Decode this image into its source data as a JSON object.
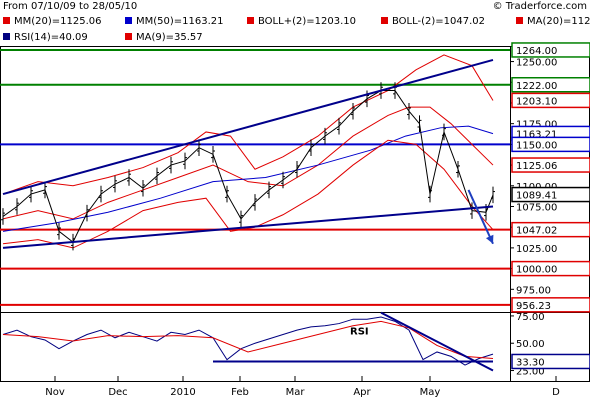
{
  "header": {
    "range_text": "From 07/10/09 to 28/05/10",
    "copyright": "© Traderforce.com",
    "legend_row1": [
      {
        "text": "MM(20)=1125.06",
        "color": "#e00000"
      },
      {
        "text": "MM(50)=1163.21",
        "color": "#0000cc"
      },
      {
        "text": "BOLL+(2)=1203.10",
        "color": "#e00000"
      },
      {
        "text": "BOLL-(2)=1047.02",
        "color": "#e00000"
      },
      {
        "text": "MA(20)=112",
        "color": "#e00000"
      }
    ],
    "legend_row2": [
      {
        "text": "RSI(14)=40.09",
        "color": "#000080"
      },
      {
        "text": "MA(9)=35.57",
        "color": "#e00000"
      }
    ]
  },
  "chart_data": [
    {
      "type": "line",
      "title": "",
      "x_ticks": [
        "Nov",
        "Dec",
        "2010",
        "Feb",
        "Mar",
        "Apr",
        "May",
        "D"
      ],
      "y_ticks": [
        975.0,
        1000.0,
        1025.0,
        1050.0,
        1075.0,
        1100.0,
        1125.0,
        1150.0,
        1175.0,
        1200.0,
        1225.0,
        1250.0
      ],
      "y_tick_labels": [
        "975.00",
        "1000.00",
        "1025.00",
        "1050.00",
        "1075.00",
        "1100.00",
        "1125.00",
        "1150.00",
        "1175.00",
        "1200.00",
        "1225.00",
        "1250.00"
      ],
      "ylim": [
        950,
        1270
      ],
      "grid": false,
      "price_series": {
        "name": "",
        "color": "#000000",
        "x_index": [
          0,
          4,
          8,
          12,
          16,
          20,
          24,
          28,
          32,
          36,
          40,
          44,
          48,
          52,
          56,
          60,
          64,
          68,
          72,
          76,
          80,
          84,
          88,
          92,
          96,
          100,
          104,
          108,
          112,
          116,
          119,
          122,
          126,
          130,
          134,
          138,
          140
        ],
        "values": [
          1063,
          1075,
          1090,
          1095,
          1045,
          1032,
          1067,
          1090,
          1102,
          1110,
          1097,
          1112,
          1125,
          1130,
          1146,
          1138,
          1090,
          1060,
          1080,
          1095,
          1107,
          1120,
          1146,
          1160,
          1172,
          1190,
          1205,
          1215,
          1215,
          1190,
          1175,
          1090,
          1165,
          1120,
          1070,
          1068,
          1089
        ]
      },
      "series": [
        {
          "name": "MM(20)",
          "color": "#e00000",
          "x_index": [
            0,
            10,
            20,
            30,
            40,
            50,
            60,
            70,
            80,
            90,
            100,
            110,
            116,
            122,
            128,
            134,
            140
          ],
          "values": [
            1060,
            1070,
            1060,
            1080,
            1095,
            1110,
            1125,
            1105,
            1100,
            1125,
            1160,
            1185,
            1195,
            1195,
            1175,
            1150,
            1125
          ]
        },
        {
          "name": "MM(50)",
          "color": "#0000cc",
          "x_index": [
            0,
            15,
            30,
            45,
            60,
            75,
            90,
            105,
            115,
            125,
            133,
            140
          ],
          "values": [
            1045,
            1055,
            1068,
            1085,
            1105,
            1110,
            1125,
            1143,
            1160,
            1170,
            1172,
            1163
          ]
        },
        {
          "name": "BOLL+(2)",
          "color": "#e00000",
          "x_index": [
            0,
            10,
            20,
            30,
            40,
            50,
            58,
            65,
            72,
            80,
            90,
            100,
            110,
            118,
            126,
            134,
            140
          ],
          "values": [
            1090,
            1105,
            1100,
            1110,
            1122,
            1140,
            1165,
            1160,
            1120,
            1135,
            1160,
            1195,
            1215,
            1240,
            1258,
            1245,
            1203
          ]
        },
        {
          "name": "BOLL-(2)",
          "color": "#e00000",
          "x_index": [
            0,
            10,
            20,
            30,
            40,
            50,
            58,
            65,
            72,
            80,
            90,
            100,
            110,
            118,
            126,
            134,
            140
          ],
          "values": [
            1030,
            1035,
            1025,
            1045,
            1070,
            1080,
            1085,
            1045,
            1050,
            1065,
            1090,
            1125,
            1155,
            1150,
            1120,
            1075,
            1047
          ]
        }
      ],
      "level_lines": [
        {
          "value": 1264.0,
          "label": "1264.00",
          "color": "#008000"
        },
        {
          "value": 1222.0,
          "label": "1222.00",
          "color": "#008000"
        },
        {
          "value": 1203.1,
          "label": "1203.10",
          "color": "#e00000"
        },
        {
          "value": 1163.21,
          "label": "1163.21",
          "color": "#0000cc"
        },
        {
          "value": 1150.0,
          "label": "1150.00",
          "color": "#0000cc"
        },
        {
          "value": 1125.06,
          "label": "1125.06",
          "color": "#e00000"
        },
        {
          "value": 1089.41,
          "label": "1089.41",
          "color": "#000000"
        },
        {
          "value": 1047.02,
          "label": "1047.02",
          "color": "#e00000"
        },
        {
          "value": 1000.0,
          "label": "1000.00",
          "color": "#e00000"
        },
        {
          "value": 956.23,
          "label": "956.23",
          "color": "#e00000"
        }
      ],
      "trendlines": [
        {
          "x_index": [
            0,
            140
          ],
          "values": [
            1090,
            1252
          ],
          "color": "#00008b"
        },
        {
          "x_index": [
            0,
            140
          ],
          "values": [
            1025,
            1075
          ],
          "color": "#00008b"
        },
        {
          "x_index": [
            133,
            140
          ],
          "values": [
            1095,
            1030
          ],
          "color": "#1f3fbf",
          "arrow": true
        }
      ]
    },
    {
      "type": "line",
      "title": "",
      "annotation": "RSI",
      "y_ticks": [
        25.0,
        50.0,
        75.0
      ],
      "y_tick_labels": [
        "25.00",
        "50.00",
        "75.00"
      ],
      "ylim": [
        20,
        85
      ],
      "grid": false,
      "series": [
        {
          "name": "RSI(14)",
          "color": "#000080",
          "x_index": [
            0,
            4,
            8,
            12,
            16,
            20,
            24,
            28,
            32,
            36,
            40,
            44,
            48,
            52,
            56,
            60,
            64,
            68,
            72,
            76,
            80,
            84,
            88,
            92,
            96,
            100,
            104,
            108,
            112,
            116,
            120,
            124,
            128,
            132,
            136,
            140
          ],
          "values": [
            58,
            62,
            56,
            53,
            45,
            52,
            58,
            62,
            55,
            60,
            56,
            52,
            60,
            58,
            62,
            55,
            35,
            45,
            50,
            54,
            58,
            62,
            65,
            66,
            68,
            72,
            72,
            74,
            70,
            62,
            35,
            42,
            38,
            30,
            36,
            40
          ]
        },
        {
          "name": "MA(9)",
          "color": "#e00000",
          "x_index": [
            0,
            10,
            20,
            30,
            40,
            50,
            60,
            70,
            80,
            90,
            100,
            108,
            116,
            124,
            132,
            140
          ],
          "values": [
            58,
            56,
            52,
            57,
            56,
            57,
            55,
            42,
            50,
            58,
            66,
            70,
            64,
            48,
            38,
            36
          ]
        }
      ],
      "level_lines": [
        {
          "value": 33.3,
          "label": "33.30",
          "color": "#00008b"
        }
      ],
      "trendlines": [
        {
          "x_index": [
            108,
            140
          ],
          "values": [
            78,
            25
          ],
          "color": "#00008b"
        },
        {
          "x_index": [
            60,
            140
          ],
          "values": [
            33.3,
            33.3
          ],
          "color": "#00008b"
        }
      ]
    }
  ]
}
